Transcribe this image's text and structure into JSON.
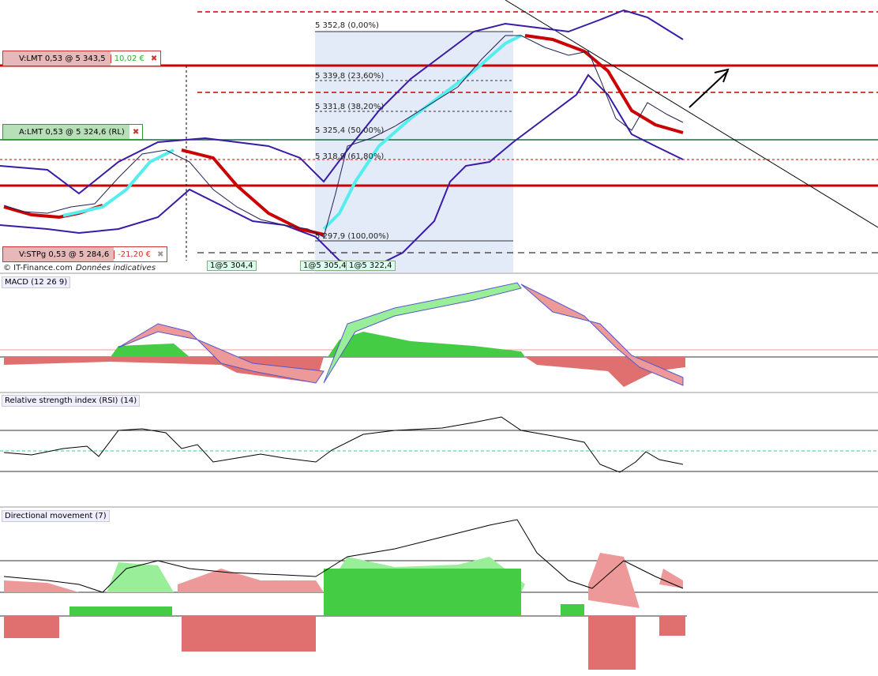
{
  "orders": [
    {
      "label": "V:LMT  0,53 @ 5 343,5",
      "pnl": "10,02 €"
    },
    {
      "label": "A:LMT  0,53 @ 5 324,6 (RL)"
    },
    {
      "label": "V:STPg  0,53 @ 5 284,6",
      "pnl": "-21,20 €"
    }
  ],
  "fibonacci": [
    "5 352,8 (0,00%)",
    "5 339,8 (23,60%)",
    "5 331,8 (38,20%)",
    "5 325,4 (50,00%)",
    "5 318,9 (61,80%)",
    "5 297,9 (100,00%)"
  ],
  "fills": [
    "1@5 304,4",
    "1@5 305,4",
    "1@5 322,4"
  ],
  "footer": {
    "copyright": "© IT-Finance.com",
    "note": "Données indicatives"
  },
  "panels": [
    "MACD (12 26 9)",
    "Relative strength index (RSI) (14)",
    "Directional movement (7)"
  ]
}
